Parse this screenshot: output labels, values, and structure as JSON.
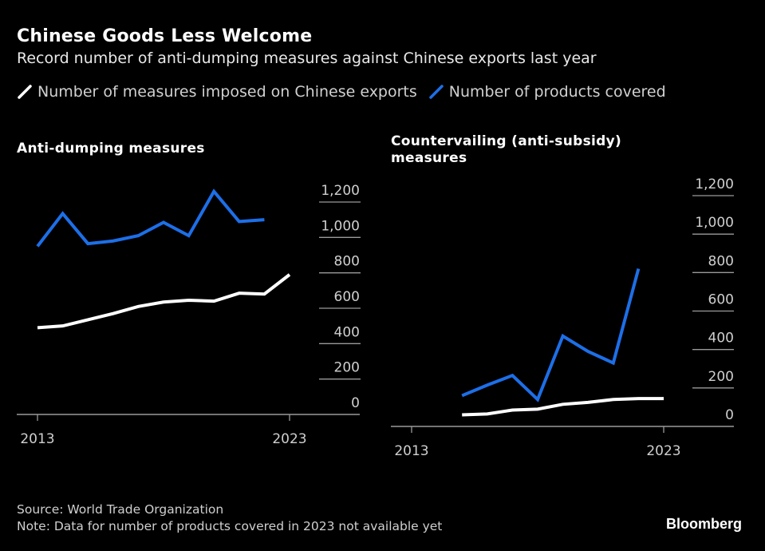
{
  "header": {
    "title": "Chinese Goods Less Welcome",
    "subtitle": "Record number of anti-dumping measures against Chinese exports last year"
  },
  "legend": [
    {
      "label": "Number of measures imposed on Chinese exports",
      "color": "#ffffff",
      "icon": "line-swatch-icon"
    },
    {
      "label": "Number of products covered",
      "color": "#1d6fe8",
      "icon": "line-swatch-icon"
    }
  ],
  "colors": {
    "measures": "#ffffff",
    "products": "#1d6fe8",
    "grid": "#9a9a9a",
    "background": "#000000"
  },
  "chart_data": [
    {
      "type": "line",
      "title": "Anti-dumping measures",
      "xlabel": "",
      "ylabel": "",
      "x_ticks": [
        "2013",
        "2023"
      ],
      "y_ticks": [
        "0",
        "200",
        "400",
        "600",
        "800",
        "1,000",
        "1,200"
      ],
      "ylim": [
        0,
        1200
      ],
      "xlim": [
        2013,
        2023
      ],
      "grid": true,
      "y_axis_position": "right",
      "series": [
        {
          "name": "Number of measures imposed on Chinese exports",
          "color": "#ffffff",
          "x": [
            2013,
            2014,
            2015,
            2016,
            2017,
            2018,
            2019,
            2020,
            2021,
            2022,
            2023
          ],
          "values": [
            490,
            500,
            535,
            570,
            610,
            635,
            645,
            640,
            685,
            680,
            790
          ]
        },
        {
          "name": "Number of products covered",
          "color": "#1d6fe8",
          "x": [
            2013,
            2014,
            2015,
            2016,
            2017,
            2018,
            2019,
            2020,
            2021,
            2022
          ],
          "values": [
            950,
            1135,
            965,
            980,
            1010,
            1085,
            1010,
            1260,
            1090,
            1100
          ]
        }
      ]
    },
    {
      "type": "line",
      "title": "Countervailing (anti-subsidy) measures",
      "xlabel": "",
      "ylabel": "",
      "x_ticks": [
        "2013",
        "2023"
      ],
      "y_ticks": [
        "0",
        "200",
        "400",
        "600",
        "800",
        "1,000",
        "1,200"
      ],
      "ylim": [
        0,
        1200
      ],
      "xlim": [
        2013,
        2023
      ],
      "grid": true,
      "y_axis_position": "right",
      "series": [
        {
          "name": "Number of measures imposed on Chinese exports",
          "color": "#ffffff",
          "x": [
            2015,
            2016,
            2017,
            2018,
            2019,
            2020,
            2021,
            2022,
            2023
          ],
          "values": [
            60,
            65,
            85,
            90,
            115,
            125,
            140,
            145,
            145
          ]
        },
        {
          "name": "Number of products covered",
          "color": "#1d6fe8",
          "x": [
            2015,
            2016,
            2017,
            2018,
            2019,
            2020,
            2021,
            2022
          ],
          "values": [
            160,
            215,
            265,
            140,
            470,
            390,
            330,
            820
          ]
        }
      ]
    }
  ],
  "footer": {
    "source": "Source: World Trade Organization",
    "note": "Note: Data for number of products covered in 2023 not available yet",
    "brand": "Bloomberg"
  }
}
